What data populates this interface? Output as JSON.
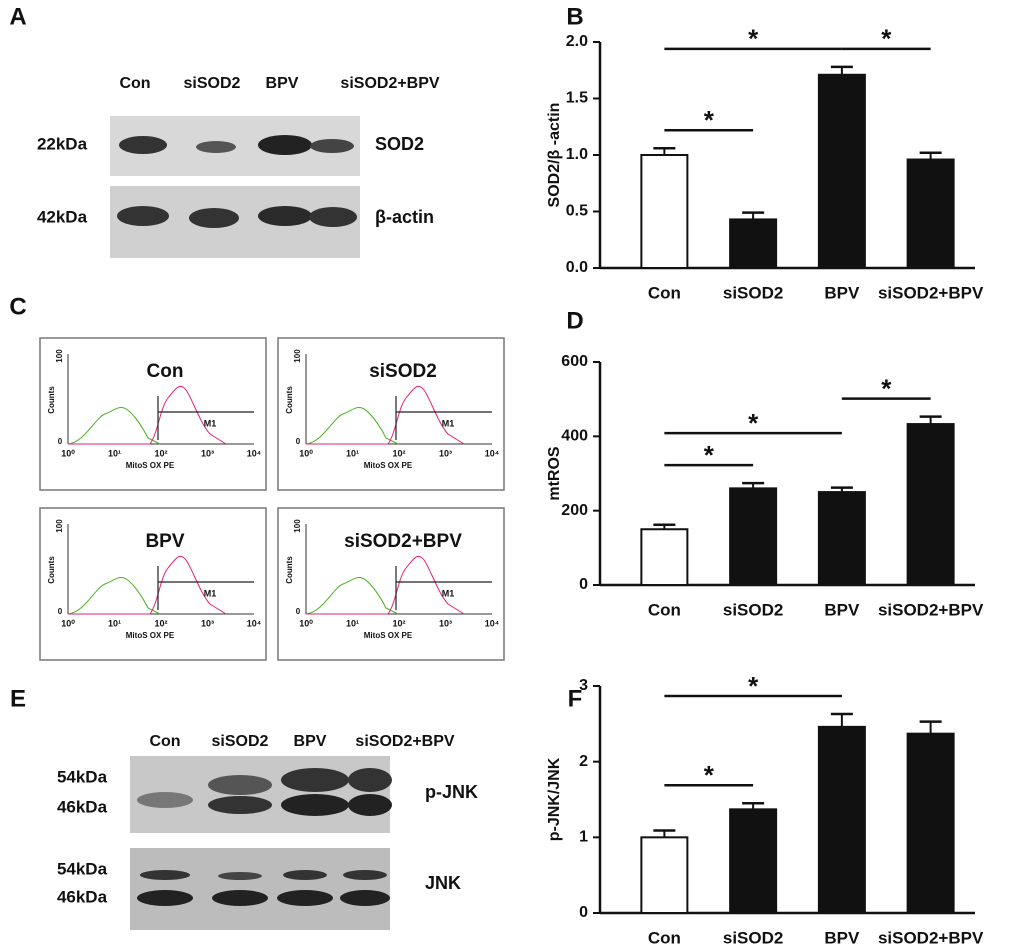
{
  "panel_letters": [
    "A",
    "B",
    "C",
    "D",
    "E",
    "F"
  ],
  "blot_a": {
    "lanes": [
      "Con",
      "siSOD2",
      "BPV",
      "siSOD2+BPV"
    ],
    "rows": [
      {
        "marker": "22kDa",
        "protein": "SOD2"
      },
      {
        "marker": "42kDa",
        "protein": "β-actin"
      }
    ]
  },
  "flow": {
    "panels": [
      "Con",
      "siSOD2",
      "BPV",
      "siSOD2+BPV"
    ],
    "y_label": "Counts",
    "y_top": "100",
    "y_bottom": "0",
    "x_label": "MitoS OX PE",
    "gate": "M1",
    "x_ticks": [
      "10⁰",
      "10¹",
      "10²",
      "10³",
      "10⁴"
    ]
  },
  "blot_e": {
    "lanes": [
      "Con",
      "siSOD2",
      "BPV",
      "siSOD2+BPV"
    ],
    "rows": [
      {
        "markers": [
          "54kDa",
          "46kDa"
        ],
        "protein": "p-JNK"
      },
      {
        "markers": [
          "54kDa",
          "46kDa"
        ],
        "protein": "JNK"
      }
    ]
  },
  "chart_data": [
    {
      "type": "bar",
      "y_label": "SOD2/β -actin",
      "categories": [
        "Con",
        "siSOD2",
        "BPV",
        "siSOD2+BPV"
      ],
      "values": [
        1.0,
        0.43,
        1.71,
        0.96
      ],
      "errors": [
        0.06,
        0.06,
        0.07,
        0.06
      ],
      "colors": [
        "#ffffff",
        "#111111",
        "#111111",
        "#111111"
      ],
      "ylim": [
        0,
        2
      ],
      "yticks": [
        {
          "value": 0,
          "label": "0.0"
        },
        {
          "value": 0.5,
          "label": "0.5"
        },
        {
          "value": 1,
          "label": "1.0"
        },
        {
          "value": 1.5,
          "label": "1.5"
        },
        {
          "value": 2,
          "label": "2.0"
        }
      ],
      "significance": [
        {
          "label": "*",
          "groups": [
            "Con",
            "siSOD2"
          ]
        },
        {
          "label": "*",
          "groups": [
            "Con",
            "BPV"
          ]
        },
        {
          "label": "*",
          "groups": [
            "BPV",
            "siSOD2+BPV"
          ]
        }
      ]
    },
    {
      "type": "bar",
      "y_label": "mtROS",
      "categories": [
        "Con",
        "siSOD2",
        "BPV",
        "siSOD2+BPV"
      ],
      "values": [
        150,
        260,
        250,
        433
      ],
      "errors": [
        12,
        14,
        12,
        20
      ],
      "colors": [
        "#ffffff",
        "#111111",
        "#111111",
        "#111111"
      ],
      "ylim": [
        0,
        600
      ],
      "yticks": [
        0,
        200,
        400,
        600
      ],
      "significance": [
        {
          "label": "*",
          "groups": [
            "Con",
            "siSOD2"
          ]
        },
        {
          "label": "*",
          "groups": [
            "Con",
            "BPV"
          ]
        },
        {
          "label": "*",
          "groups": [
            "BPV",
            "siSOD2+BPV"
          ]
        }
      ]
    },
    {
      "type": "bar",
      "y_label": "p-JNK/JNK",
      "categories": [
        "Con",
        "siSOD2",
        "BPV",
        "siSOD2+BPV"
      ],
      "values": [
        1.0,
        1.37,
        2.46,
        2.37
      ],
      "errors": [
        0.09,
        0.08,
        0.17,
        0.16
      ],
      "colors": [
        "#ffffff",
        "#111111",
        "#111111",
        "#111111"
      ],
      "ylim": [
        0,
        3
      ],
      "yticks": [
        0,
        1,
        2,
        3
      ],
      "significance": [
        {
          "label": "*",
          "groups": [
            "Con",
            "siSOD2"
          ]
        },
        {
          "label": "*",
          "groups": [
            "Con",
            "BPV"
          ]
        }
      ]
    }
  ]
}
